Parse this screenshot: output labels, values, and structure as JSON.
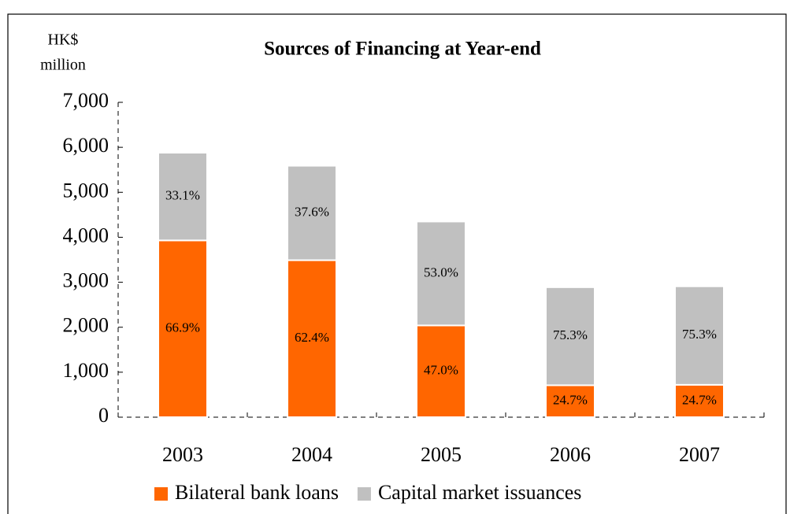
{
  "chart_data": {
    "type": "stacked-bar",
    "title": "Sources of Financing at Year-end",
    "ylabel": [
      "HK$",
      "million"
    ],
    "categories": [
      "2003",
      "2004",
      "2005",
      "2006",
      "2007"
    ],
    "series": [
      {
        "name": "Bilateral bank loans",
        "color": "#ff6600",
        "values": [
          3930,
          3490,
          2040,
          710,
          720
        ],
        "share_labels": [
          "66.9%",
          "62.4%",
          "47.0%",
          "24.7%",
          "24.7%"
        ]
      },
      {
        "name": "Capital market issuances",
        "color": "#c0c0c0",
        "values": [
          1950,
          2100,
          2310,
          2180,
          2190
        ],
        "share_labels": [
          "33.1%",
          "37.6%",
          "53.0%",
          "75.3%",
          "75.3%"
        ]
      }
    ],
    "ylim": [
      0,
      7000
    ],
    "yticks": [
      0,
      {
        "value": 1000,
        "label": "1,000"
      },
      {
        "value": 2000,
        "label": "2,000"
      },
      {
        "value": 3000,
        "label": "3,000"
      },
      {
        "value": 4000,
        "label": "4,000"
      },
      {
        "value": 5000,
        "label": "5,000"
      },
      {
        "value": 6000,
        "label": "6,000"
      },
      {
        "value": 7000,
        "label": "7,000"
      }
    ],
    "legend": "bottom"
  }
}
